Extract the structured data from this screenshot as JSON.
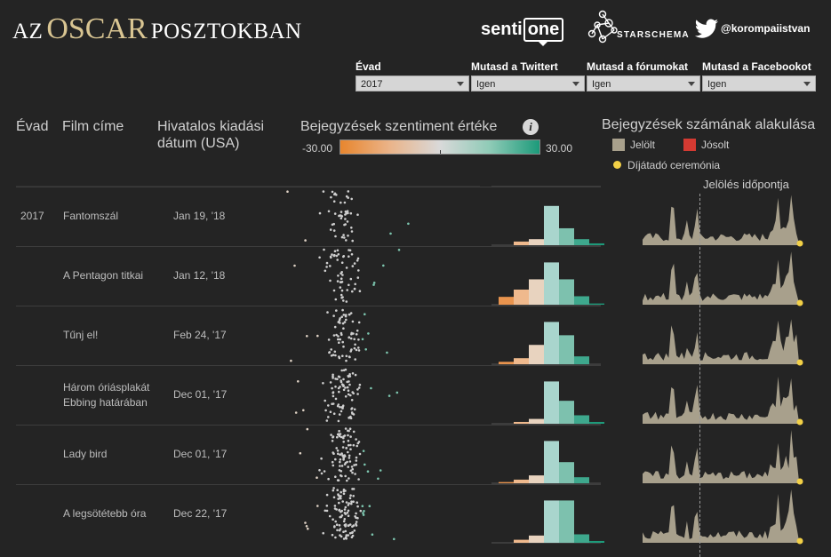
{
  "header": {
    "title_prefix": "AZ",
    "title_highlight": "OSCAR",
    "title_suffix": "POSZTOKBAN",
    "logo_sentione_a": "senti",
    "logo_sentione_b": "one",
    "logo_starschema": "STARSCHEMA",
    "twitter_handle": "@korompaiistvan"
  },
  "filters": [
    {
      "label": "Évad",
      "value": "2017"
    },
    {
      "label": "Mutasd a Twittert",
      "value": "Igen"
    },
    {
      "label": "Mutasd a fórumokat",
      "value": "Igen"
    },
    {
      "label": "Mutasd a Facebookot",
      "value": "Igen"
    }
  ],
  "columns": {
    "season": "Évad",
    "film": "Film címe",
    "release_1": "Hivatalos kiadási",
    "release_2": "dátum (USA)",
    "sentiment": "Bejegyzések szentiment értéke",
    "trend": "Bejegyzések számának alakulása"
  },
  "sentiment_scale": {
    "min": "-30.00",
    "max": "30.00"
  },
  "legend": {
    "nominated": "Jelölt",
    "predicted": "Jósolt",
    "ceremony": "Díjátadó ceremónia",
    "nominated_color": "#a8a08c",
    "predicted_color": "#d43a32",
    "ceremony_color": "#f2d046"
  },
  "nomination_label": "Jelölés időpontja",
  "rows": [
    {
      "year": "2017",
      "title": "Fantomszál",
      "date": "Jan 19, '18"
    },
    {
      "year": "",
      "title": "A Pentagon titkai",
      "date": "Jan 12, '18"
    },
    {
      "year": "",
      "title": "Tűnj el!",
      "date": "Feb 24, '17"
    },
    {
      "year": "",
      "title": "Három óriásplakát Ebbing határában",
      "date": "Dec 01, '17"
    },
    {
      "year": "",
      "title": "Lady bird",
      "date": "Dec 01, '17"
    },
    {
      "year": "",
      "title": "A legsötétebb óra",
      "date": "Dec 22, '17"
    }
  ],
  "histograms": [
    [
      0,
      0.06,
      0.1,
      0.65,
      0.28,
      0.1,
      0.03
    ],
    [
      0.13,
      0.25,
      0.42,
      0.7,
      0.42,
      0.14,
      0.02
    ],
    [
      0.04,
      0.1,
      0.32,
      0.7,
      0.48,
      0.13,
      0
    ],
    [
      0,
      0.03,
      0.08,
      0.7,
      0.38,
      0.14,
      0.03
    ],
    [
      0.02,
      0.06,
      0.13,
      0.7,
      0.35,
      0.1,
      0
    ],
    [
      0,
      0.05,
      0.12,
      0.7,
      0.7,
      0.14,
      0.03
    ]
  ],
  "hist_colors": [
    "#e9944e",
    "#efb98d",
    "#e8d3bf",
    "#a9d5cd",
    "#7dc1ae",
    "#3ea88d",
    "#1e9a7a"
  ]
}
